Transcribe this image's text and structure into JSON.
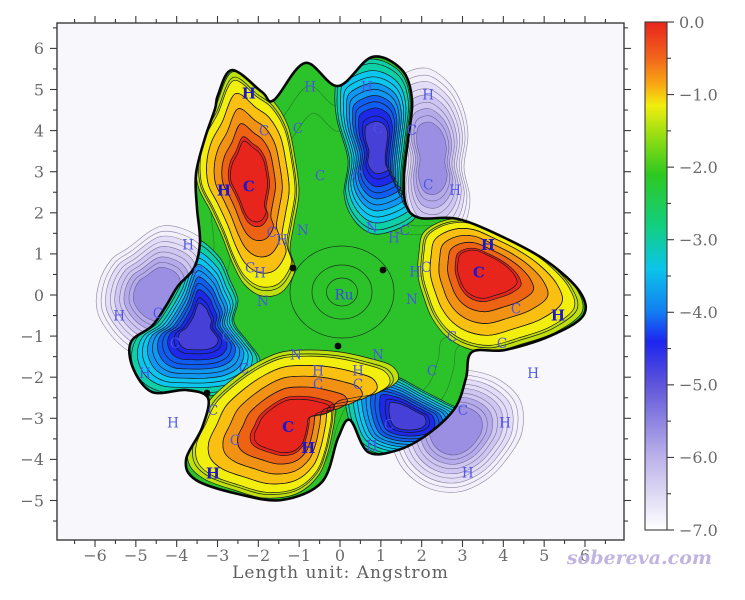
{
  "figure": {
    "kind": "filled contour map of a molecular property on a Ru complex",
    "watermark": "sobereva.com",
    "background": "#ffffff",
    "plot_background": "#f8f7fb"
  },
  "chart_data": {
    "type": "heatmap",
    "title": "",
    "xlabel": "Length unit: Angstrom",
    "ylabel": "",
    "x_ticks": [
      -6,
      -5,
      -4,
      -3,
      -2,
      -1,
      0,
      1,
      2,
      3,
      4,
      5,
      6
    ],
    "y_ticks": [
      -5,
      -4,
      -3,
      -2,
      -1,
      0,
      1,
      2,
      3,
      4,
      5,
      6
    ],
    "x_range": [
      -6.95,
      6.95
    ],
    "y_range": [
      -6.0,
      6.6
    ],
    "minor_tick_step": 0.5,
    "grid": false,
    "colorbar": {
      "max": 0.0,
      "min": -7.0,
      "tick_labels": [
        "0.0",
        "-1.0",
        "-2.0",
        "-3.0",
        "-4.0",
        "-5.0",
        "-6.0",
        "-7.0"
      ],
      "minor_tick_step": 0.5,
      "stops": [
        {
          "v": 0.0,
          "c": "#e8231c"
        },
        {
          "v": -0.5,
          "c": "#f2661c"
        },
        {
          "v": -0.9,
          "c": "#f9b013"
        },
        {
          "v": -1.15,
          "c": "#f2ee0e"
        },
        {
          "v": -1.6,
          "c": "#8fdc12"
        },
        {
          "v": -2.1,
          "c": "#2ec921"
        },
        {
          "v": -2.8,
          "c": "#12cf7e"
        },
        {
          "v": -3.4,
          "c": "#0cc4ea"
        },
        {
          "v": -4.0,
          "c": "#127df2"
        },
        {
          "v": -4.4,
          "c": "#1d25ee"
        },
        {
          "v": -5.0,
          "c": "#5f55da"
        },
        {
          "v": -6.0,
          "c": "#bcb2e9"
        },
        {
          "v": -7.0,
          "c": "#ffffff"
        }
      ]
    },
    "center_atom": {
      "el": "Ru",
      "x": 0.1,
      "y": 0.0
    },
    "atoms": [
      {
        "el": "C",
        "x": -1.86,
        "y": 3.99
      },
      {
        "el": "C",
        "x": -1.03,
        "y": 4.06
      },
      {
        "el": "H",
        "x": -0.73,
        "y": 5.06
      },
      {
        "el": "C",
        "x": -0.49,
        "y": 2.9
      },
      {
        "el": "C",
        "x": 0.42,
        "y": 2.9
      },
      {
        "el": "C",
        "x": -1.67,
        "y": 1.53
      },
      {
        "el": "H",
        "x": -1.42,
        "y": 1.34
      },
      {
        "el": "N",
        "x": -0.91,
        "y": 1.58
      },
      {
        "el": "C",
        "x": -2.2,
        "y": 0.66
      },
      {
        "el": "H",
        "x": -1.96,
        "y": 0.54
      },
      {
        "el": "H",
        "x": 0.66,
        "y": 5.06
      },
      {
        "el": "C",
        "x": 0.93,
        "y": 4.04
      },
      {
        "el": "C",
        "x": 1.76,
        "y": 4.01
      },
      {
        "el": "H",
        "x": 2.16,
        "y": 4.87
      },
      {
        "el": "C",
        "x": 2.16,
        "y": 2.68
      },
      {
        "el": "H",
        "x": 2.82,
        "y": 2.55
      },
      {
        "el": "N",
        "x": 0.78,
        "y": 1.63
      },
      {
        "el": "C",
        "x": 1.59,
        "y": 1.58
      },
      {
        "el": "H",
        "x": 1.32,
        "y": 1.39
      },
      {
        "el": "H",
        "x": 1.84,
        "y": 0.56
      },
      {
        "el": "C",
        "x": 2.11,
        "y": 0.68
      },
      {
        "el": "N",
        "x": 1.76,
        "y": -0.1
      },
      {
        "el": "C",
        "x": 4.31,
        "y": -0.34
      },
      {
        "el": "C",
        "x": 2.74,
        "y": -1.02
      },
      {
        "el": "C",
        "x": 3.97,
        "y": -1.17
      },
      {
        "el": "H",
        "x": 4.73,
        "y": -1.9
      },
      {
        "el": "H",
        "x": -3.72,
        "y": 1.22
      },
      {
        "el": "C",
        "x": -3.48,
        "y": 0.56
      },
      {
        "el": "H",
        "x": -5.41,
        "y": -0.51
      },
      {
        "el": "C",
        "x": -4.46,
        "y": -0.44
      },
      {
        "el": "C",
        "x": -4.04,
        "y": -1.17
      },
      {
        "el": "C",
        "x": -2.77,
        "y": -1.02
      },
      {
        "el": "H",
        "x": -4.78,
        "y": -1.9
      },
      {
        "el": "C",
        "x": -2.35,
        "y": -1.8
      },
      {
        "el": "N",
        "x": -1.89,
        "y": -0.15
      },
      {
        "el": "N",
        "x": -1.08,
        "y": -1.46
      },
      {
        "el": "N",
        "x": 0.93,
        "y": -1.46
      },
      {
        "el": "H",
        "x": -0.54,
        "y": -1.85
      },
      {
        "el": "C",
        "x": -0.54,
        "y": -2.17
      },
      {
        "el": "H",
        "x": 0.44,
        "y": -1.85
      },
      {
        "el": "C",
        "x": 0.44,
        "y": -2.17
      },
      {
        "el": "C",
        "x": -3.11,
        "y": -2.8
      },
      {
        "el": "C",
        "x": -2.57,
        "y": -3.53
      },
      {
        "el": "H",
        "x": -4.09,
        "y": -3.11
      },
      {
        "el": "H",
        "x": 0.78,
        "y": -3.67
      },
      {
        "el": "C",
        "x": 1.2,
        "y": -3.16
      },
      {
        "el": "C",
        "x": 2.25,
        "y": -1.85
      },
      {
        "el": "C",
        "x": 3.01,
        "y": -2.8
      },
      {
        "el": "H",
        "x": 4.04,
        "y": -3.11
      },
      {
        "el": "H",
        "x": 3.13,
        "y": -4.33
      }
    ],
    "atoms_bold": [
      {
        "el": "H",
        "x": -2.23,
        "y": 4.91
      },
      {
        "el": "H",
        "x": -2.84,
        "y": 2.55
      },
      {
        "el": "C",
        "x": -2.23,
        "y": 2.65
      },
      {
        "el": "H",
        "x": 3.62,
        "y": 1.22
      },
      {
        "el": "C",
        "x": 3.4,
        "y": 0.56
      },
      {
        "el": "H",
        "x": 5.34,
        "y": -0.49
      },
      {
        "el": "C",
        "x": -1.27,
        "y": -3.21
      },
      {
        "el": "H",
        "x": -0.78,
        "y": -3.72
      },
      {
        "el": "H",
        "x": -3.11,
        "y": -4.33
      }
    ]
  }
}
